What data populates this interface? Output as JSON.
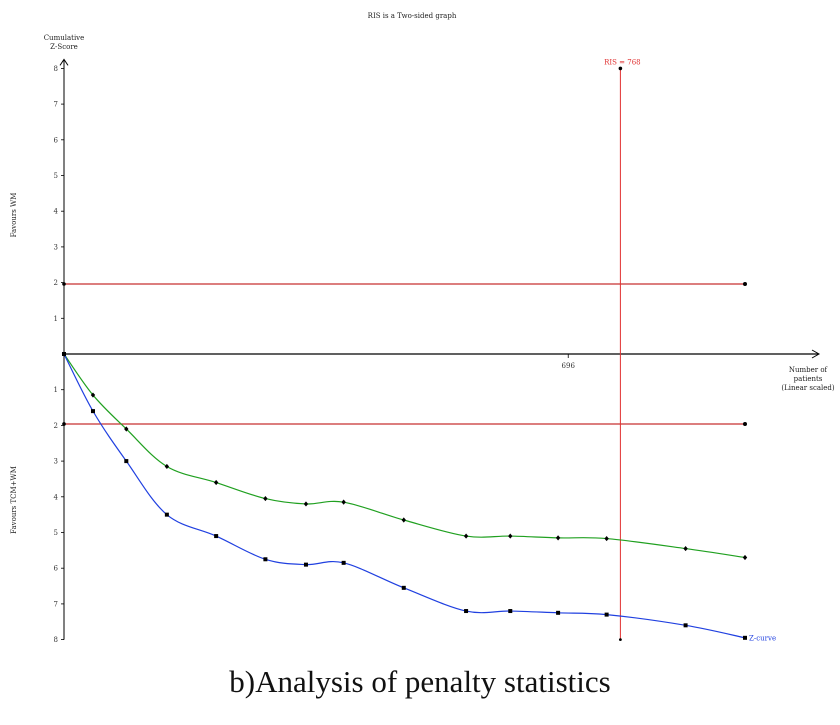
{
  "caption": "b)Analysis of penalty statistics",
  "chart_data": {
    "type": "line",
    "title": "RIS is a Two-sided graph",
    "ylabel": "Cumulative Z-Score",
    "xlabel": "Number of patients (Linear scaled)",
    "favours_top": "Favours WM",
    "favours_bottom": "Favours TCM+WM",
    "ylim": [
      -8,
      8
    ],
    "xlim": [
      0,
      940
    ],
    "y_tick_labels": [
      "8",
      "7",
      "6",
      "5",
      "4",
      "3",
      "2",
      "1",
      "1",
      "2",
      "3",
      "4",
      "5",
      "6",
      "7",
      "8"
    ],
    "y_tick_values": [
      8,
      7,
      6,
      5,
      4,
      3,
      2,
      1,
      -1,
      -2,
      -3,
      -4,
      -5,
      -6,
      -7,
      -8
    ],
    "x_tick_labels": [
      "696"
    ],
    "x_tick_values": [
      696
    ],
    "ris": {
      "label": "RIS = 768",
      "value": 768,
      "color": "#e03030"
    },
    "boundaries": [
      {
        "value": 1.96,
        "color": "#c83030"
      },
      {
        "value": -1.96,
        "color": "#c83030"
      }
    ],
    "series": [
      {
        "name": "",
        "color": "#20a020",
        "marker": "diamond",
        "x": [
          0,
          40,
          86,
          142,
          210,
          278,
          334,
          386,
          469,
          555,
          616,
          682,
          749,
          858,
          940
        ],
        "y": [
          0,
          -1.15,
          -2.1,
          -3.15,
          -3.6,
          -4.05,
          -4.2,
          -4.15,
          -4.65,
          -5.1,
          -5.1,
          -5.15,
          -5.17,
          -5.45,
          -5.7
        ]
      },
      {
        "name": "Z-curve",
        "color": "#2040e0",
        "marker": "square",
        "x": [
          0,
          40,
          86,
          142,
          210,
          278,
          334,
          386,
          469,
          555,
          616,
          682,
          749,
          858,
          940
        ],
        "y": [
          0,
          -1.6,
          -3.0,
          -4.5,
          -5.1,
          -5.75,
          -5.9,
          -5.85,
          -6.55,
          -7.2,
          -7.2,
          -7.25,
          -7.3,
          -7.6,
          -7.95
        ]
      }
    ],
    "grid": false
  }
}
